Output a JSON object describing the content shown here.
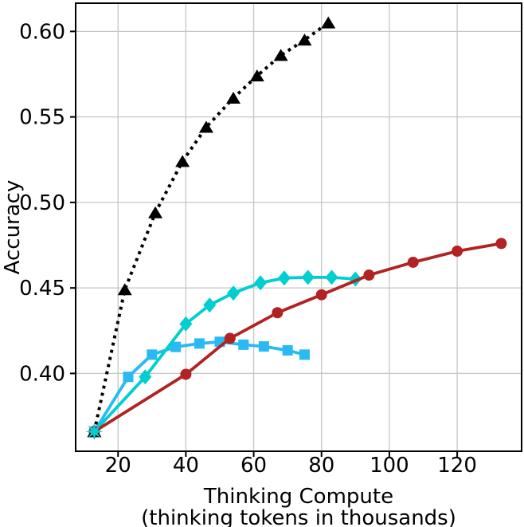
{
  "chart_data": {
    "type": "line",
    "title": "",
    "ylabel": "Accuracy",
    "xlabel_line1": "Thinking Compute",
    "xlabel_line2": "(thinking tokens in thousands)",
    "xlim": [
      7.5,
      139
    ],
    "ylim": [
      0.3545,
      0.6165
    ],
    "grid": true,
    "legend": "none",
    "grid_color": "#c6c6c6",
    "spine_color": "#000000",
    "x_ticks": [
      {
        "value": 20,
        "label": "20"
      },
      {
        "value": 40,
        "label": "40"
      },
      {
        "value": 60,
        "label": "60"
      },
      {
        "value": 80,
        "label": "80"
      },
      {
        "value": 100,
        "label": "100"
      },
      {
        "value": 120,
        "label": "120"
      }
    ],
    "y_ticks": [
      {
        "value": 0.4,
        "label": "0.40"
      },
      {
        "value": 0.45,
        "label": "0.45"
      },
      {
        "value": 0.5,
        "label": "0.50"
      },
      {
        "value": 0.55,
        "label": "0.55"
      },
      {
        "value": 0.6,
        "label": "0.60"
      }
    ],
    "series": [
      {
        "id": "sky-blue-squares",
        "color": "#29B9F3",
        "marker": "square",
        "line_style": "solid",
        "points": [
          [
            13,
            0.366
          ],
          [
            23,
            0.398
          ],
          [
            30,
            0.411
          ],
          [
            37,
            0.4155
          ],
          [
            44,
            0.4175
          ],
          [
            50,
            0.4185
          ],
          [
            57,
            0.4168
          ],
          [
            63,
            0.4158
          ],
          [
            70,
            0.4135
          ],
          [
            75,
            0.411
          ]
        ]
      },
      {
        "id": "turquoise-diamonds",
        "color": "#00CED1",
        "marker": "diamond",
        "line_style": "solid",
        "points": [
          [
            13,
            0.366
          ],
          [
            28,
            0.398
          ],
          [
            40,
            0.429
          ],
          [
            47,
            0.44
          ],
          [
            54,
            0.447
          ],
          [
            62,
            0.453
          ],
          [
            69,
            0.4558
          ],
          [
            76,
            0.4562
          ],
          [
            83,
            0.4562
          ],
          [
            90,
            0.4552
          ]
        ]
      },
      {
        "id": "dark-red-circles",
        "color": "#B22222",
        "marker": "circle",
        "line_style": "solid",
        "points": [
          [
            13,
            0.366
          ],
          [
            40,
            0.3995
          ],
          [
            53,
            0.4205
          ],
          [
            67,
            0.4355
          ],
          [
            80,
            0.446
          ],
          [
            94,
            0.4575
          ],
          [
            107,
            0.465
          ],
          [
            120,
            0.4715
          ],
          [
            133,
            0.476
          ]
        ]
      },
      {
        "id": "black-dotted-triangles",
        "color": "#000000",
        "marker": "triangle",
        "line_style": "dotted",
        "points": [
          [
            13,
            0.366
          ],
          [
            22,
            0.449
          ],
          [
            31,
            0.494
          ],
          [
            39,
            0.524
          ],
          [
            46,
            0.544
          ],
          [
            54,
            0.561
          ],
          [
            61,
            0.574
          ],
          [
            68,
            0.586
          ],
          [
            75,
            0.595
          ],
          [
            82,
            0.605
          ]
        ]
      }
    ],
    "start_marker": {
      "x": 13,
      "y": 0.366,
      "shape": "star-8-point",
      "color": "#0BCBD1"
    }
  }
}
